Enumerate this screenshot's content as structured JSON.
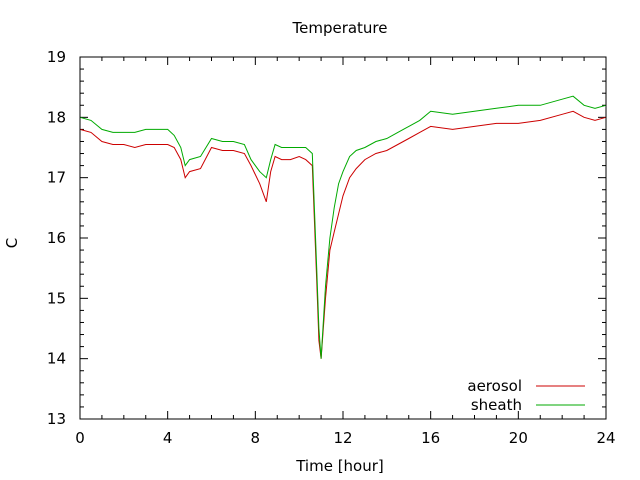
{
  "chart_data": {
    "type": "line",
    "title": "Temperature",
    "xlabel": "Time [hour]",
    "ylabel": "C",
    "xlim": [
      0,
      24
    ],
    "ylim": [
      13,
      19
    ],
    "xticks": [
      0,
      4,
      8,
      12,
      16,
      20,
      24
    ],
    "yticks": [
      13,
      14,
      15,
      16,
      17,
      18,
      19
    ],
    "grid": false,
    "legend_position": "bottom-right",
    "colors": {
      "aerosol": "#cc0000",
      "sheath": "#00aa00"
    },
    "series": [
      {
        "name": "aerosol",
        "x": [
          0,
          0.5,
          1,
          1.5,
          2,
          2.5,
          3,
          3.5,
          4,
          4.3,
          4.6,
          4.8,
          5,
          5.5,
          6,
          6.5,
          7,
          7.5,
          7.8,
          8.2,
          8.5,
          8.7,
          8.9,
          9.2,
          9.6,
          10,
          10.3,
          10.6,
          10.8,
          10.9,
          11,
          11.2,
          11.4,
          11.6,
          11.8,
          12,
          12.3,
          12.6,
          13,
          13.5,
          14,
          14.5,
          15,
          15.5,
          16,
          17,
          18,
          19,
          20,
          21,
          22,
          22.5,
          23,
          23.5,
          24
        ],
        "y": [
          17.8,
          17.75,
          17.6,
          17.55,
          17.55,
          17.5,
          17.55,
          17.55,
          17.55,
          17.5,
          17.3,
          17.0,
          17.1,
          17.15,
          17.5,
          17.45,
          17.45,
          17.4,
          17.2,
          16.9,
          16.6,
          17.1,
          17.35,
          17.3,
          17.3,
          17.35,
          17.3,
          17.2,
          15.3,
          14.3,
          14.0,
          15.0,
          15.8,
          16.1,
          16.4,
          16.7,
          17.0,
          17.15,
          17.3,
          17.4,
          17.45,
          17.55,
          17.65,
          17.75,
          17.85,
          17.8,
          17.85,
          17.9,
          17.9,
          17.95,
          18.05,
          18.1,
          18.0,
          17.95,
          18.0
        ]
      },
      {
        "name": "sheath",
        "x": [
          0,
          0.5,
          1,
          1.5,
          2,
          2.5,
          3,
          3.5,
          4,
          4.3,
          4.6,
          4.8,
          5,
          5.5,
          6,
          6.5,
          7,
          7.5,
          7.8,
          8.2,
          8.5,
          8.7,
          8.9,
          9.2,
          9.6,
          10,
          10.3,
          10.6,
          10.8,
          10.9,
          11,
          11.2,
          11.4,
          11.6,
          11.8,
          12,
          12.3,
          12.6,
          13,
          13.5,
          14,
          14.5,
          15,
          15.5,
          16,
          17,
          18,
          19,
          20,
          21,
          22,
          22.5,
          23,
          23.5,
          24
        ],
        "y": [
          18.0,
          17.95,
          17.8,
          17.75,
          17.75,
          17.75,
          17.8,
          17.8,
          17.8,
          17.7,
          17.5,
          17.2,
          17.3,
          17.35,
          17.65,
          17.6,
          17.6,
          17.55,
          17.3,
          17.1,
          17.0,
          17.3,
          17.55,
          17.5,
          17.5,
          17.5,
          17.5,
          17.4,
          15.5,
          14.5,
          14.0,
          15.2,
          16.0,
          16.5,
          16.9,
          17.1,
          17.35,
          17.45,
          17.5,
          17.6,
          17.65,
          17.75,
          17.85,
          17.95,
          18.1,
          18.05,
          18.1,
          18.15,
          18.2,
          18.2,
          18.3,
          18.35,
          18.2,
          18.15,
          18.2
        ]
      }
    ]
  }
}
